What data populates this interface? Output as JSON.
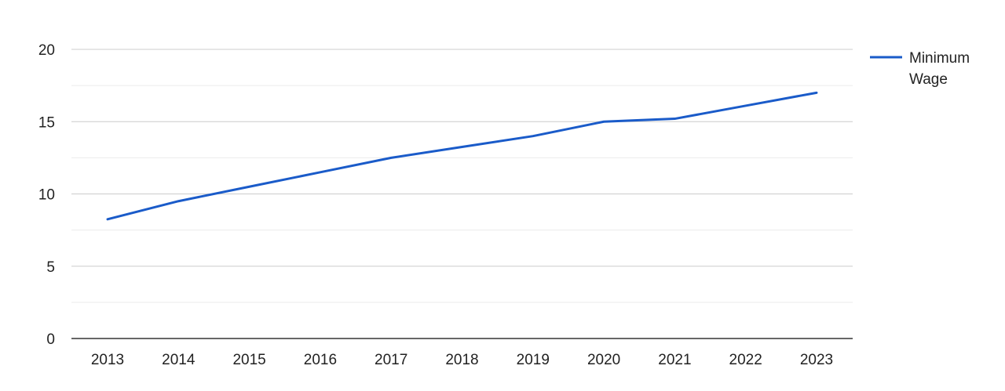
{
  "chart_data": {
    "type": "line",
    "title": "",
    "xlabel": "",
    "ylabel": "",
    "categories": [
      "2013",
      "2014",
      "2015",
      "2016",
      "2017",
      "2018",
      "2019",
      "2020",
      "2021",
      "2022",
      "2023"
    ],
    "series": [
      {
        "name": "Minimum Wage",
        "color": "#1a5bc9",
        "values": [
          8.25,
          9.5,
          10.5,
          11.5,
          12.5,
          13.25,
          14.0,
          15.0,
          15.2,
          16.1,
          17.0
        ]
      }
    ],
    "ylim": [
      0,
      20
    ],
    "y_ticks": [
      0,
      5,
      10,
      15,
      20
    ],
    "grid": true,
    "legend_position": "right",
    "legend_lines": [
      "Minimum",
      "Wage"
    ]
  }
}
